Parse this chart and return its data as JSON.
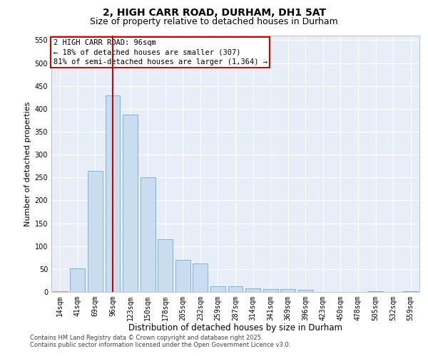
{
  "title": "2, HIGH CARR ROAD, DURHAM, DH1 5AT",
  "subtitle": "Size of property relative to detached houses in Durham",
  "xlabel": "Distribution of detached houses by size in Durham",
  "ylabel": "Number of detached properties",
  "categories": [
    "14sqm",
    "41sqm",
    "69sqm",
    "96sqm",
    "123sqm",
    "150sqm",
    "178sqm",
    "205sqm",
    "232sqm",
    "259sqm",
    "287sqm",
    "314sqm",
    "341sqm",
    "369sqm",
    "396sqm",
    "423sqm",
    "450sqm",
    "478sqm",
    "505sqm",
    "532sqm",
    "559sqm"
  ],
  "values": [
    2,
    52,
    265,
    430,
    388,
    250,
    115,
    70,
    63,
    13,
    13,
    8,
    7,
    6,
    4,
    0,
    0,
    0,
    2,
    0,
    1
  ],
  "bar_color": "#c9dcf0",
  "bar_edge_color": "#6baed6",
  "red_line_index": 3,
  "annotation_line1": "2 HIGH CARR ROAD: 96sqm",
  "annotation_line2": "← 18% of detached houses are smaller (307)",
  "annotation_line3": "81% of semi-detached houses are larger (1,364) →",
  "annotation_box_color": "#ffffff",
  "annotation_box_edge_color": "#cc0000",
  "red_line_color": "#cc0000",
  "ylim": [
    0,
    560
  ],
  "yticks": [
    0,
    50,
    100,
    150,
    200,
    250,
    300,
    350,
    400,
    450,
    500,
    550
  ],
  "grid_color": "#ffffff",
  "background_color": "#e8eef8",
  "footer_line1": "Contains HM Land Registry data © Crown copyright and database right 2025.",
  "footer_line2": "Contains public sector information licensed under the Open Government Licence v3.0.",
  "title_fontsize": 10,
  "subtitle_fontsize": 9,
  "xlabel_fontsize": 8.5,
  "ylabel_fontsize": 8,
  "tick_fontsize": 7,
  "footer_fontsize": 6
}
